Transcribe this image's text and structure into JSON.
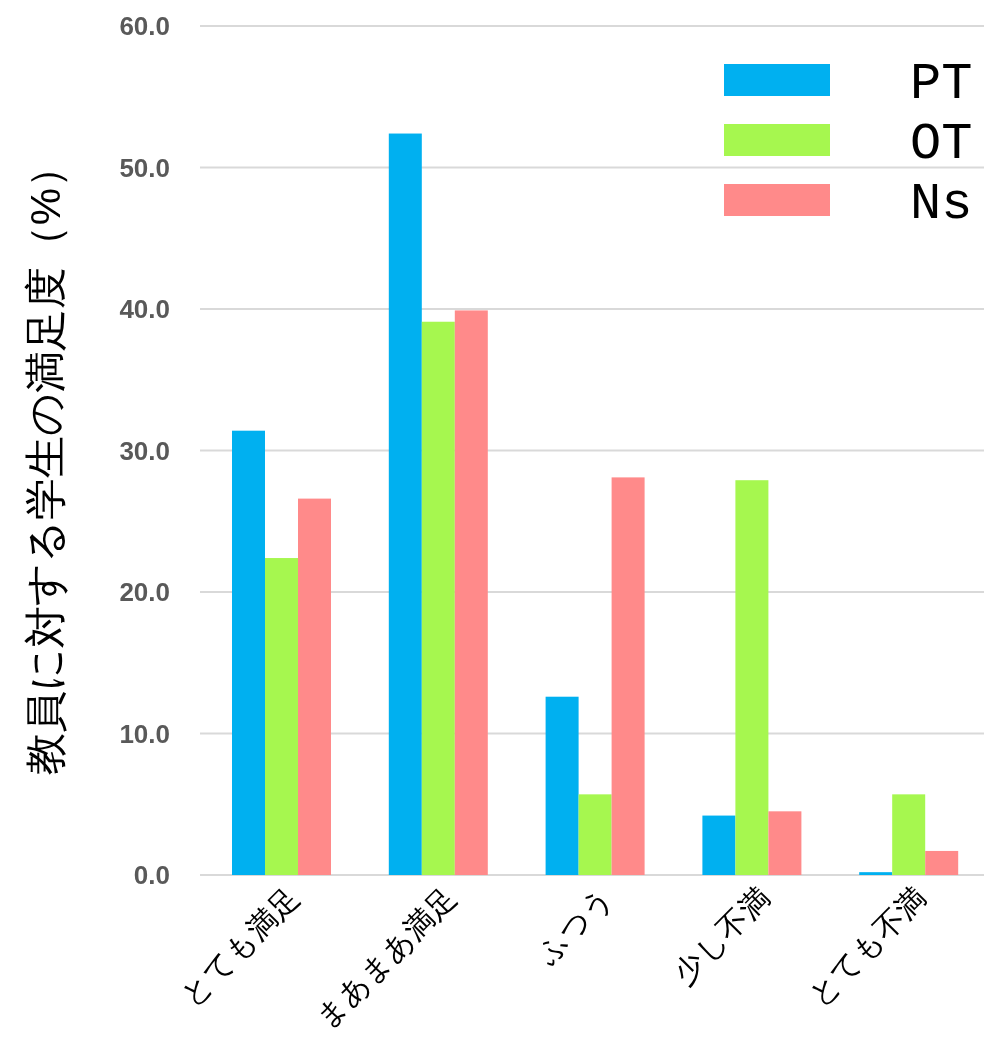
{
  "chart_data": {
    "type": "bar",
    "ylabel": "教員に対する学生の満足度（%）",
    "categories": [
      "とても満足",
      "まあまあ満足",
      "ふつう",
      "少し不満",
      "とても不満"
    ],
    "series": [
      {
        "name": "PT",
        "color": "#00b0f0",
        "values": [
          31.4,
          52.4,
          12.6,
          4.2,
          0.2
        ]
      },
      {
        "name": "OT",
        "color": "#a6f74f",
        "values": [
          22.4,
          39.1,
          5.7,
          27.9,
          5.7
        ]
      },
      {
        "name": "Ns",
        "color": "#ff8a8a",
        "values": [
          26.6,
          39.9,
          28.1,
          4.5,
          1.7
        ]
      }
    ],
    "ylim": [
      0,
      60
    ],
    "yticks": [
      {
        "value": 0,
        "label": "0.0"
      },
      {
        "value": 10,
        "label": "10.0"
      },
      {
        "value": 20,
        "label": "20.0"
      },
      {
        "value": 30,
        "label": "30.0"
      },
      {
        "value": 40,
        "label": "40.0"
      },
      {
        "value": 50,
        "label": "50.0"
      },
      {
        "value": 60,
        "label": "60.0"
      }
    ],
    "grid": "y",
    "legend": "top right"
  }
}
